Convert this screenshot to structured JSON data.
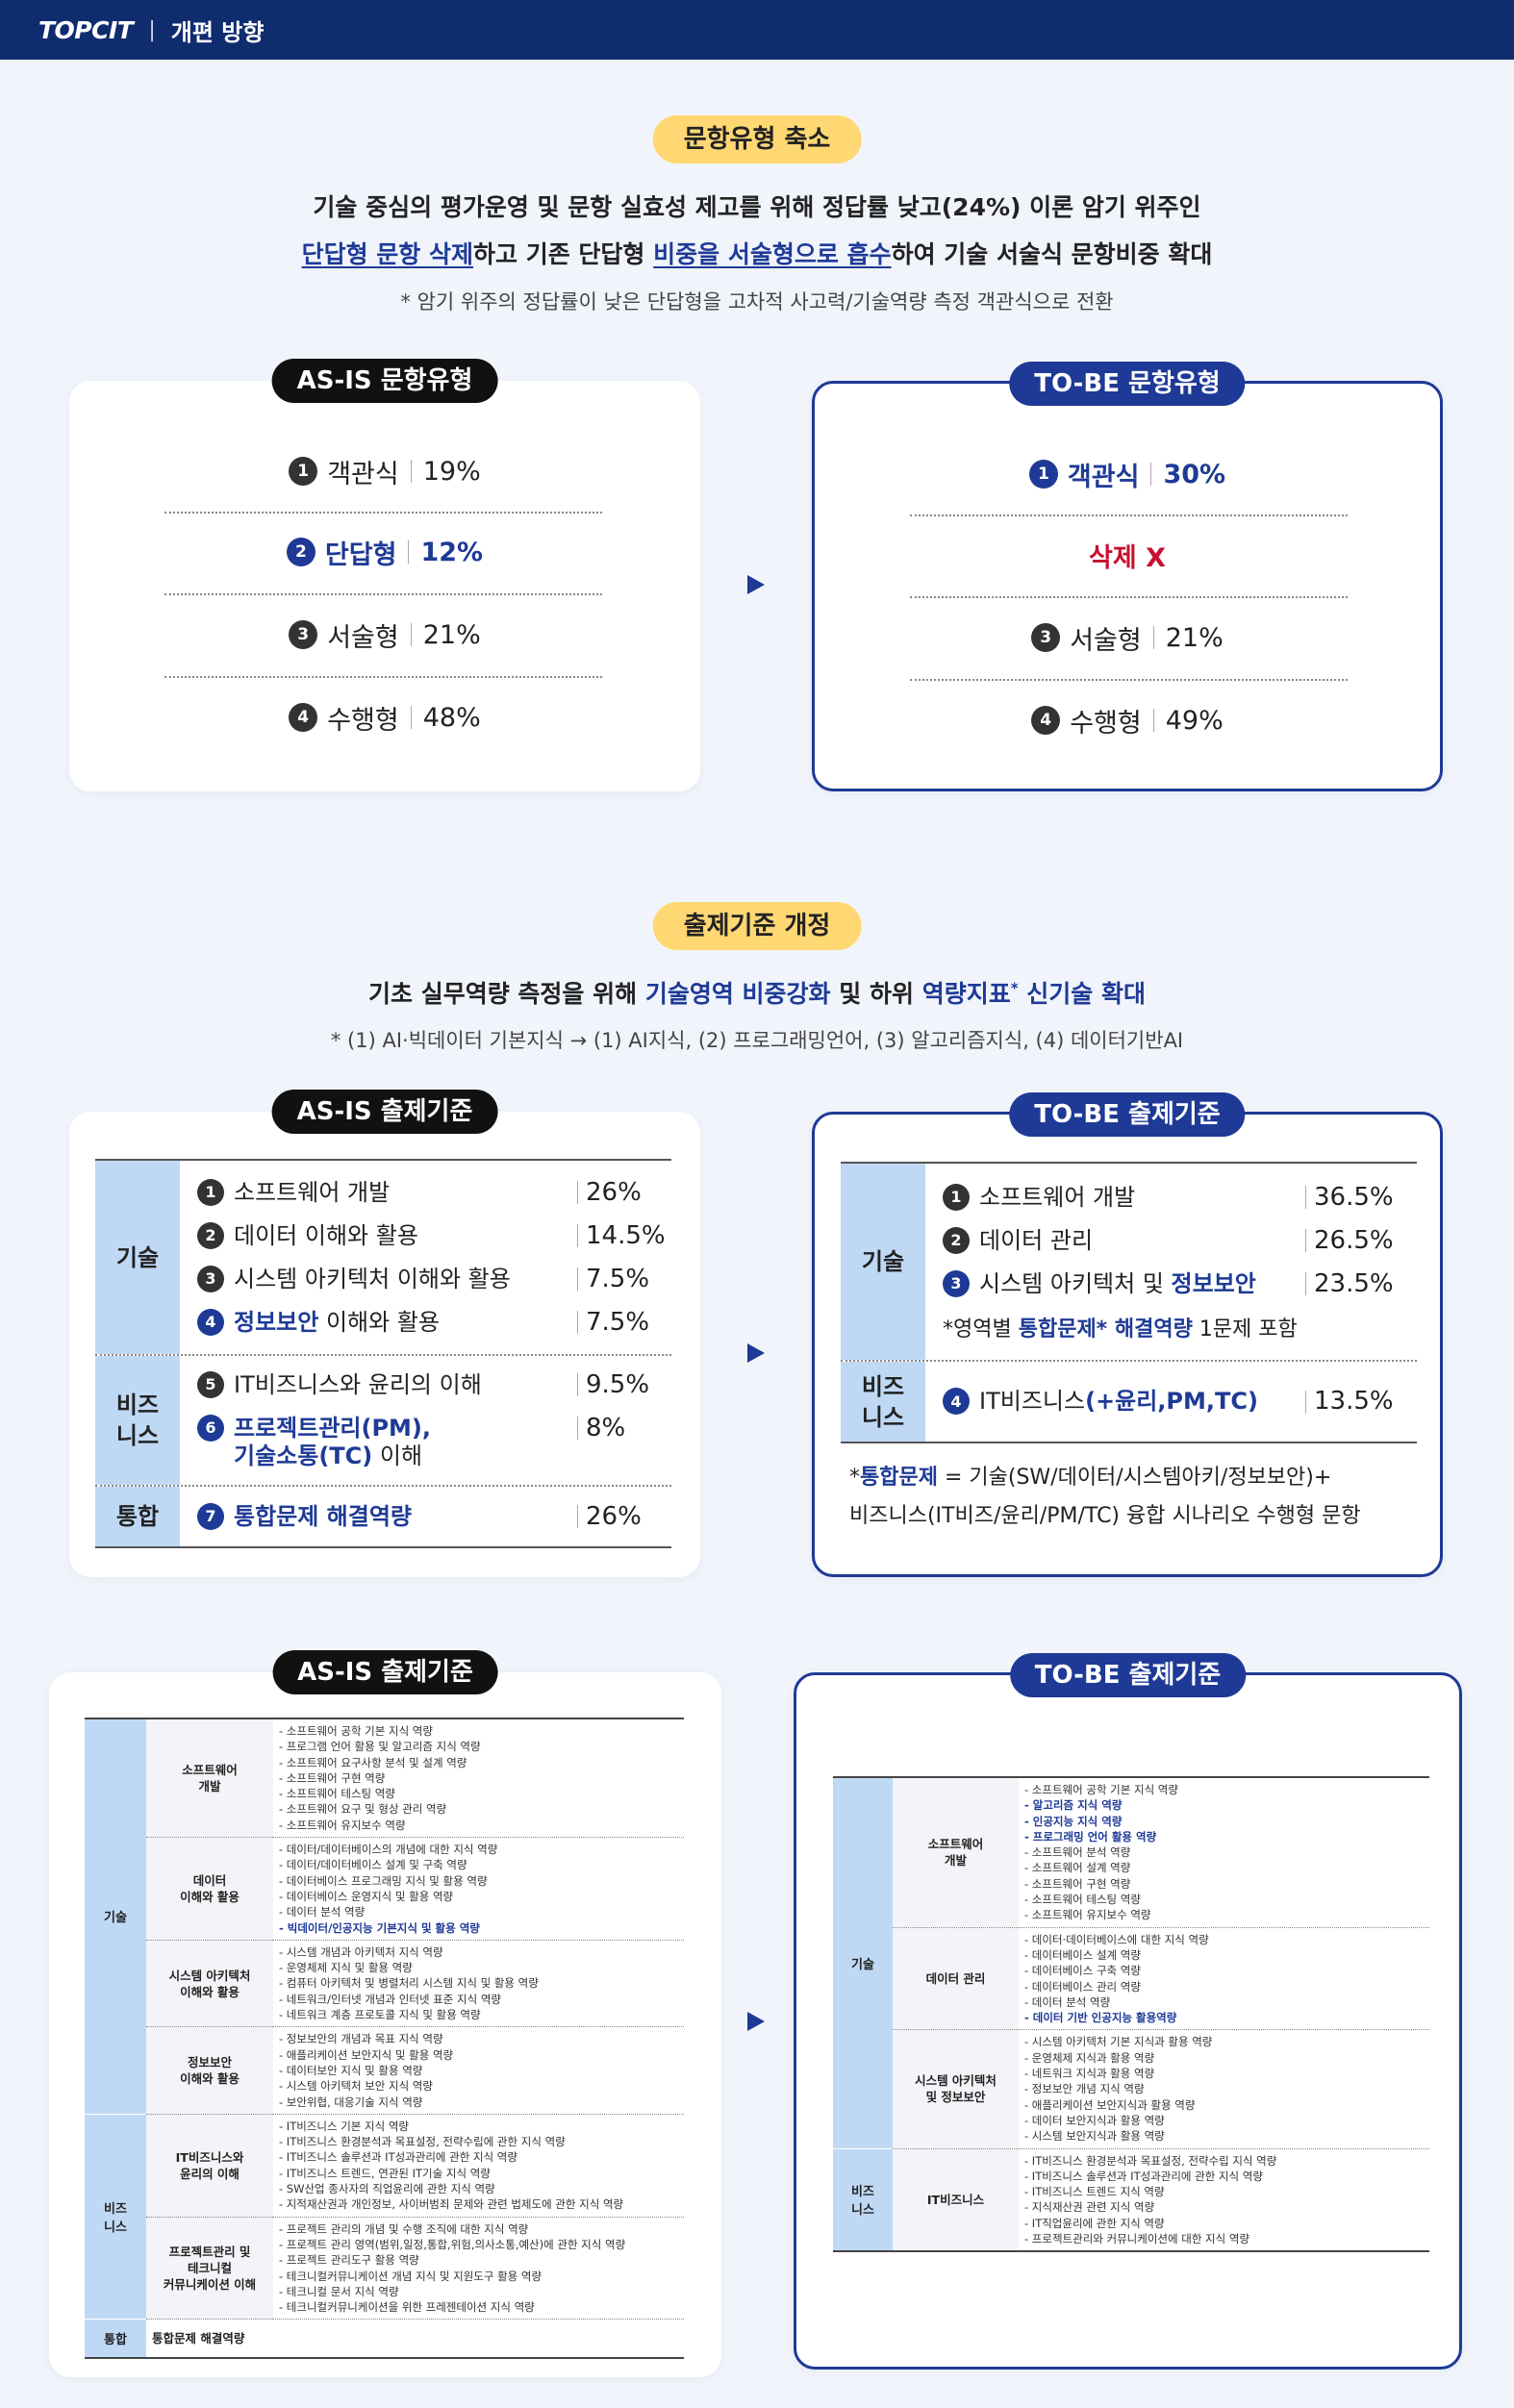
{
  "header": {
    "logo": "TOPCIT",
    "divider": "|",
    "title": "개편 방향"
  },
  "section1": {
    "badge": "문항유형 축소",
    "lead": "기술 중심의 평가운영 및 문항 실효성 제고를 위해 정답률 낮고(24%) 이론 암기 위주인",
    "lead2": [
      {
        "text": "단답형 문항 삭제",
        "style": "blue ul"
      },
      "하고 기존 단답형 ",
      {
        "text": "비중을 서술형으로 흡수",
        "style": "blue ul"
      },
      "하여 기술 서술식 문항비중 확대"
    ],
    "note": "* 암기 위주의 정답률이 낮은 단답형을 고차적 사고력/기술역량 측정 객관식으로 전환",
    "as_is": {
      "title": "AS-IS 문항유형",
      "rows": [
        {
          "num": "1",
          "label": "객관식",
          "value": "19%"
        },
        {
          "num": "2",
          "label": "단답형",
          "value": "12%",
          "highlight": true
        },
        {
          "num": "3",
          "label": "서술형",
          "value": "21%"
        },
        {
          "num": "4",
          "label": "수행형",
          "value": "48%"
        }
      ]
    },
    "to_be": {
      "title": "TO-BE 문항유형",
      "rows": [
        {
          "num": "1",
          "label": "객관식",
          "value": "30%",
          "highlight": true
        },
        {
          "label": "삭제 X",
          "style": "red"
        },
        {
          "num": "3",
          "label": "서술형",
          "value": "21%"
        },
        {
          "num": "4",
          "label": "수행형",
          "value": "49%"
        }
      ]
    }
  },
  "section2": {
    "badge": "출제기준 개정",
    "lead": [
      "기초 실무역량 측정을 위해 ",
      {
        "text": "기술영역 비중강화",
        "style": "blue"
      },
      " 및 하위 ",
      {
        "text": "역량지표",
        "style": "blue"
      },
      {
        "text": "*",
        "style": "blue sup"
      },
      {
        "text": " 신기술 확대",
        "style": "blue"
      }
    ],
    "note": "* (1) AI·빅데이터 기본지식 → (1) AI지식, (2) 프로그래밍언어, (3) 알고리즘지식, (4) 데이터기반AI",
    "as_is": {
      "title": "AS-IS 출제기준",
      "groups": [
        {
          "name": "기술",
          "items": [
            {
              "num": "1",
              "label": "소프트웨어 개발",
              "value": "26%"
            },
            {
              "num": "2",
              "label": "데이터 이해와 활용",
              "value": "14.5%"
            },
            {
              "num": "3",
              "label": "시스템 아키텍처 이해와 활용",
              "value": "7.5%"
            },
            {
              "num": "4",
              "label": [
                {
                  "text": "정보보안",
                  "style": "blue"
                },
                " 이해와 활용"
              ],
              "value": "7.5%",
              "highlight": true
            }
          ]
        },
        {
          "name": "비즈\n니스",
          "items": [
            {
              "num": "5",
              "label": "IT비즈니스와 윤리의 이해",
              "value": "9.5%"
            },
            {
              "num": "6",
              "label": [
                {
                  "text": "프로젝트관리(PM),",
                  "style": "blue"
                },
                {
                  "text": "기술소통(TC)",
                  "style": "blue newline"
                },
                " 이해"
              ],
              "value": "8%",
              "highlight": true
            }
          ]
        },
        {
          "name": "통합",
          "items": [
            {
              "num": "7",
              "label": [
                {
                  "text": "통합문제 해결역량",
                  "style": "blue"
                }
              ],
              "value": "26%",
              "highlight": true
            }
          ]
        }
      ]
    },
    "to_be": {
      "title": "TO-BE 출제기준",
      "groups": [
        {
          "name": "기술",
          "items": [
            {
              "num": "1",
              "label": "소프트웨어 개발",
              "value": "36.5%"
            },
            {
              "num": "2",
              "label": "데이터 관리",
              "value": "26.5%"
            },
            {
              "num": "3",
              "label": [
                "시스템 아키텍처 및 ",
                {
                  "text": "정보보안",
                  "style": "blue"
                }
              ],
              "value": "23.5%",
              "highlight": true
            },
            {
              "note": [
                "*영역별 ",
                {
                  "text": "통합문제* 해결역량",
                  "style": "blue"
                },
                " 1문제 포함"
              ]
            }
          ]
        },
        {
          "name": "비즈\n니스",
          "items": [
            {
              "num": "4",
              "label": [
                "IT비즈니스",
                {
                  "text": "(+윤리,PM,TC)",
                  "style": "blue"
                }
              ],
              "value": "13.5%",
              "highlight": true
            }
          ]
        }
      ],
      "footnote": [
        [
          "*",
          {
            "text": "통합문제",
            "style": "blue"
          },
          " = 기술(SW/데이터/시스템아키/정보보안)+"
        ],
        [
          "비즈니스(IT비즈/윤리/PM/TC) 융합 시나리오 수행형 문항"
        ]
      ]
    }
  },
  "section3": {
    "as_is": {
      "title": "AS-IS 출제기준",
      "groups": [
        {
          "name": "기술",
          "rows": [
            {
              "name": "소프트웨어\n개발",
              "items": [
                "- 소프트웨어 공학 기본 지식 역량",
                "- 프로그램 언어 활용 및 알고리즘 지식 역량",
                "- 소프트웨어 요구사항 분석 및 설계 역량",
                "- 소프트웨어 구현 역량",
                "- 소프트웨어 테스팅 역량",
                "- 소프트웨어 요구 및 형상 관리 역량",
                "- 소프트웨어 유지보수 역량"
              ]
            },
            {
              "name": "데이터\n이해와 활용",
              "items": [
                "- 데이터/데이터베이스의 개념에 대한 지식 역량",
                "- 데이터/데이터베이스 설계 및 구축 역량",
                "- 데이터베이스 프로그래밍 지식 및 활용 역량",
                "- 데이터베이스 운영지식 및 활용 역량",
                "- 데이터 분석 역량",
                {
                  "text": "- 빅데이터/인공지능 기본지식 및 활용 역량",
                  "highlight": true
                }
              ]
            },
            {
              "name": "시스템 아키텍처\n이해와 활용",
              "items": [
                "- 시스템 개념과 아키텍처 지식 역량",
                "- 운영체제 지식 및 활용 역량",
                "- 컴퓨터 아키텍처 및 병렬처리 시스템 지식 및 활용 역량",
                "- 네트워크/인터넷 개념과 인터넷 표준 지식 역량",
                "- 네트워크 계층 프로토콜 지식 및 활용 역량"
              ]
            },
            {
              "name": "정보보안\n이해와 활용",
              "items": [
                "- 정보보안의 개념과 목표 지식 역량",
                "- 애플리케이션 보안지식 및 활용 역량",
                "- 데이터보안 지식 및 활용 역량",
                "- 시스템 아키텍처 보안 지식 역량",
                "- 보안위협, 대응기술 지식 역량"
              ]
            }
          ]
        },
        {
          "name": "비즈\n니스",
          "rows": [
            {
              "name": "IT비즈니스와\n윤리의 이해",
              "items": [
                "- IT비즈니스 기본 지식 역량",
                "- IT비즈니스 환경분석과 목표설정, 전략수립에 관한 지식 역량",
                "- IT비즈니스 솔루션과 IT성과관리에 관한 지식 역량",
                "- IT비즈니스 트렌드, 연관된 IT기술 지식 역량",
                "- SW산업 종사자의 직업윤리에 관한 지식 역량",
                "- 지적재산권과 개인정보, 사이버범죄 문제와 관련 법제도에 관한 지식 역량"
              ]
            },
            {
              "name": "프로젝트관리 및\n테크니컬\n커뮤니케이션 이해",
              "items": [
                "- 프로젝트 관리의 개념 및 수행 조직에 대한 지식 역량",
                "- 프로젝트 관리 영역(범위,일정,통합,위험,의사소통,예산)에 관한 지식 역량",
                "- 프로젝트 관리도구 활용 역량",
                "- 테크니컬커뮤니케이션 개념 지식 및 지원도구 활용 역량",
                "- 테크니컬 문서 지식 역량",
                "- 테크니컬커뮤니케이션을 위한 프레젠테이션 지식 역량"
              ]
            }
          ]
        },
        {
          "name": "통합",
          "rows": [
            {
              "name": "통합문제 해결역량"
            }
          ]
        }
      ]
    },
    "to_be": {
      "title": "TO-BE 출제기준",
      "groups": [
        {
          "name": "기술",
          "rows": [
            {
              "name": "소프트웨어\n개발",
              "items": [
                "- 소프트웨어 공학 기본 지식 역량",
                {
                  "text": "- 알고리즘 지식 역량",
                  "highlight": true
                },
                {
                  "text": "- 인공지능 지식 역량",
                  "highlight": true
                },
                {
                  "text": "- 프로그래밍 언어 활용 역량",
                  "highlight": true
                },
                "- 소프트웨어 분석 역량",
                "- 소프트웨어 설계 역량",
                "- 소프트웨어 구현 역량",
                "- 소프트웨어 테스팅 역량",
                "- 소프트웨어 유지보수 역량"
              ]
            },
            {
              "name": "데이터 관리",
              "items": [
                "- 데이터·데이터베이스에 대한 지식 역량",
                "- 데이터베이스 설계 역량",
                "- 데이터베이스 구축 역량",
                "- 데이터베이스 관리 역량",
                "- 데이터 분석 역량",
                {
                  "text": "- 데이터 기반 인공지능 활용역량",
                  "highlight": true
                }
              ]
            },
            {
              "name": "시스템 아키텍처\n및 정보보안",
              "items": [
                "- 시스템 아키텍처 기본 지식과 활용 역량",
                "- 운영체제 지식과 활용 역량",
                "- 네트워크 지식과 활용 역량",
                "- 정보보안 개념 지식 역량",
                "- 애플리케이션 보안지식과 활용 역량",
                "- 데이터 보안지식과 활용 역량",
                "- 시스템 보안지식과 활용 역량"
              ]
            }
          ]
        },
        {
          "name": "비즈\n니스",
          "rows": [
            {
              "name": "IT비즈니스",
              "items": [
                "- IT비즈니스 환경분석과 목표설정, 전략수립 지식 역량",
                "- IT비즈니스 솔루션과 IT성과관리에 관한 지식 역량",
                "- IT비즈니스 트렌드 지식 역량",
                "- 지식재산권 관련 지식 역량",
                "- IT직업윤리에 관한 지식 역량",
                "- 프로젝트관리와 커뮤니케이션에 대한 지식 역량"
              ]
            }
          ]
        }
      ]
    }
  }
}
